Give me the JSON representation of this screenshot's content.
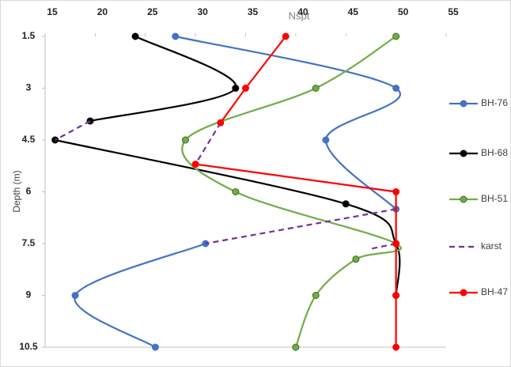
{
  "chart_data": {
    "type": "line",
    "x_label": "Nspt",
    "y_label": "Depth (m)",
    "xlim": [
      15,
      55
    ],
    "xticks": [
      15,
      20,
      25,
      30,
      35,
      40,
      45,
      50,
      55
    ],
    "ylim": [
      1.5,
      10.5
    ],
    "yticks": [
      1.5,
      3,
      4.5,
      6,
      7.5,
      9,
      10.5
    ],
    "y_inverted": true,
    "series": [
      {
        "name": "BH-76",
        "color": "#4472c4",
        "smooth": true,
        "markers": true,
        "x": [
          28,
          50,
          43,
          50,
          null,
          31,
          18,
          26
        ],
        "values": [
          1.5,
          3,
          4.5,
          6.5,
          null,
          7.5,
          9,
          10.5
        ]
      },
      {
        "name": "BH-68",
        "color": "#000000",
        "smooth": true,
        "markers": true,
        "x": [
          24,
          34,
          19.5,
          null,
          16,
          45,
          50,
          50
        ],
        "values": [
          1.5,
          3,
          3.95,
          null,
          4.5,
          6.35,
          7.5,
          9
        ]
      },
      {
        "name": "BH-51",
        "color": "#70ad47",
        "smooth": true,
        "markers": true,
        "x": [
          50,
          42,
          29,
          34,
          50,
          46,
          42,
          40
        ],
        "values": [
          1.5,
          3,
          4.5,
          6,
          7.5,
          7.95,
          9,
          10.5
        ]
      },
      {
        "name": "karst",
        "color": "#7030a0",
        "smooth": false,
        "markers": false,
        "dashed": true,
        "x": [
          19.5,
          16,
          null,
          32.5,
          30,
          null,
          50,
          31,
          null,
          50,
          47.5
        ],
        "values": [
          3.95,
          4.5,
          null,
          4.0,
          5.2,
          null,
          6.5,
          7.5,
          null,
          7.5,
          7.65
        ]
      },
      {
        "name": "BH-47",
        "color": "#ff0000",
        "smooth": false,
        "markers": true,
        "x": [
          39,
          35,
          32.5,
          null,
          30,
          50,
          50,
          50,
          50
        ],
        "values": [
          1.5,
          3,
          4.0,
          null,
          5.2,
          6,
          7.5,
          9,
          10.5
        ]
      }
    ]
  }
}
